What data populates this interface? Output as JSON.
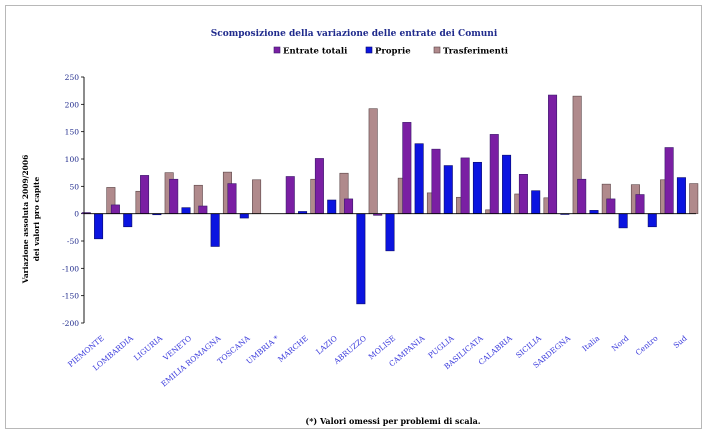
{
  "chart_data": {
    "type": "bar",
    "title": "Scomposizione della variazione delle entrate dei Comuni",
    "ylabel_line1": "Variazione assoluta 2009/2006",
    "ylabel_line2": "dei valori pro capite",
    "xlabel": "",
    "footnote": "(*) Valori omessi per problemi di scala.",
    "ylim": [
      -200,
      250
    ],
    "yticks": [
      250,
      200,
      150,
      100,
      50,
      0,
      -50,
      -100,
      -150,
      -200
    ],
    "grid": false,
    "legend_position": "top",
    "categories": [
      "PIEMONTE",
      "LOMBARDIA",
      "LIGURIA",
      "VENETO",
      "EMILIA ROMAGNA",
      "TOSCANA",
      "UMBRIA *",
      "MARCHE",
      "LAZIO",
      "ABRUZZO",
      "MOLISE",
      "CAMPANIA",
      "PUGLIA",
      "BASILICATA",
      "CALABRIA",
      "SICILIA",
      "SARDEGNA",
      "Italia",
      "Nord",
      "Centro",
      "Sud"
    ],
    "series": [
      {
        "name": "Entrate totali",
        "color": "#7a1fa3",
        "edge": "#3a1b6a",
        "values": [
          2,
          16,
          70,
          63,
          14,
          55,
          null,
          68,
          101,
          27,
          -3,
          167,
          118,
          102,
          145,
          72,
          217,
          63,
          27,
          35,
          121
        ]
      },
      {
        "name": "Proprie",
        "color": "#0b14e0",
        "edge": "#0a0a6a",
        "values": [
          -46,
          -24,
          -2,
          11,
          -60,
          -8,
          null,
          4,
          25,
          -165,
          -68,
          128,
          88,
          94,
          107,
          42,
          0,
          6,
          -26,
          -24,
          66
        ]
      },
      {
        "name": "Trasferimenti",
        "color": "#b08a8c",
        "edge": "#5a4446",
        "values": [
          48,
          41,
          75,
          52,
          76,
          62,
          null,
          63,
          74,
          192,
          65,
          38,
          30,
          7,
          36,
          29,
          215,
          54,
          53,
          62,
          55
        ]
      }
    ]
  }
}
